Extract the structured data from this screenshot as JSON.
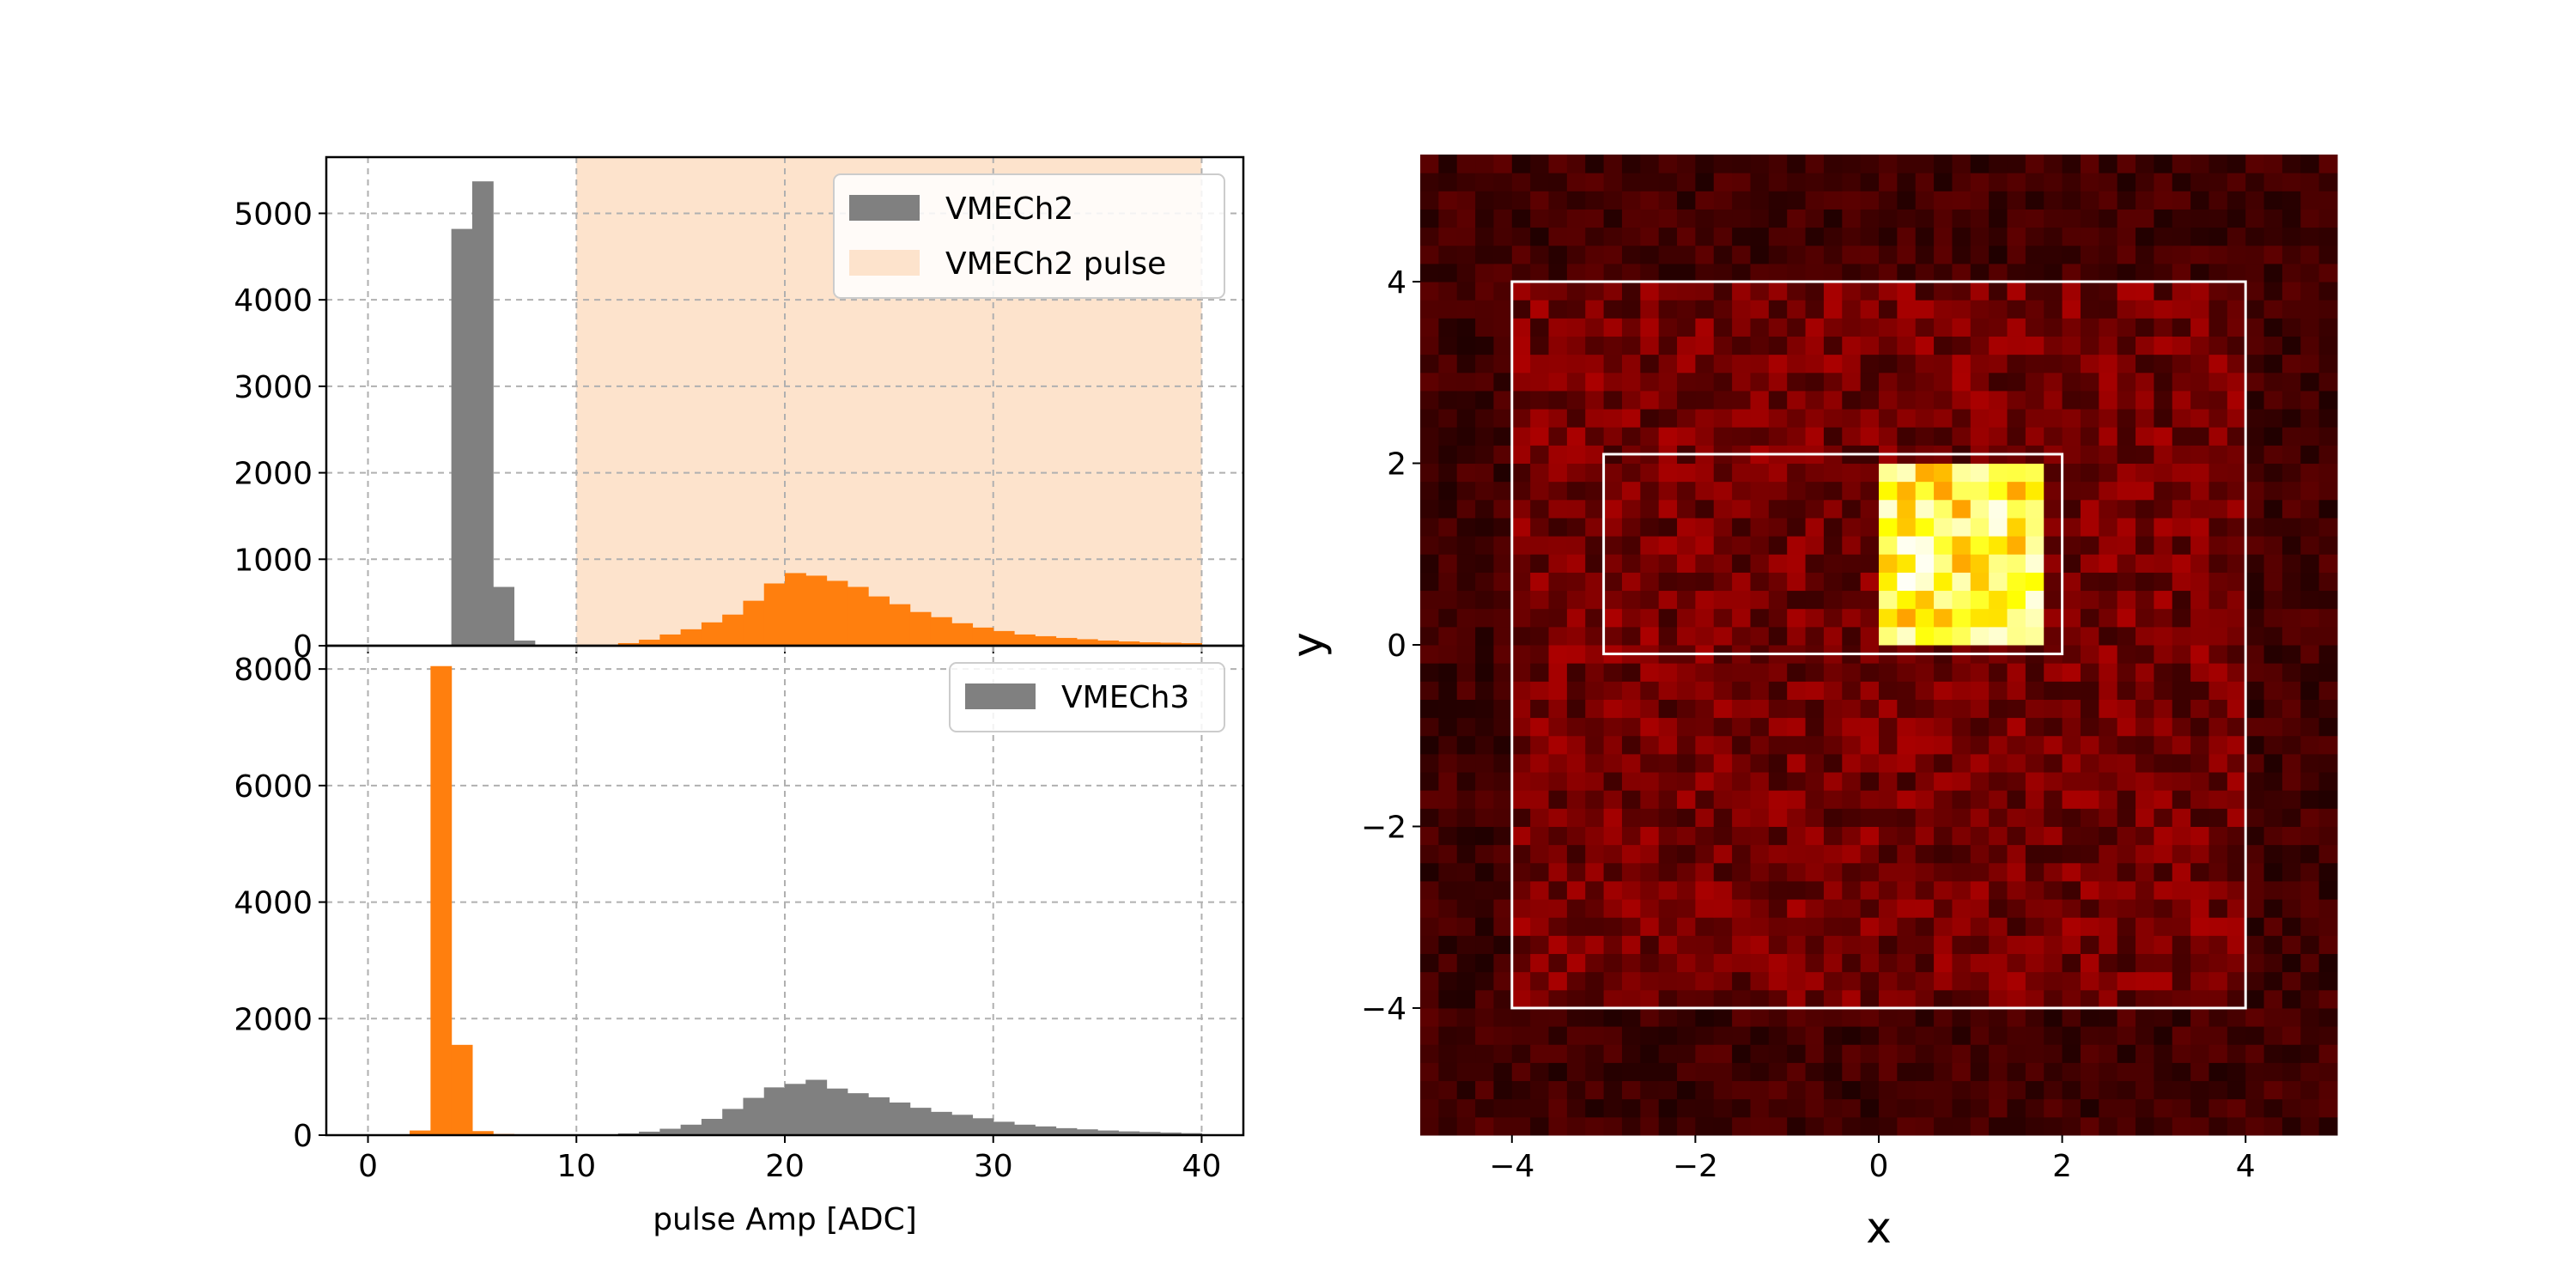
{
  "chart_data": [
    {
      "type": "bar",
      "panel": "top-left histogram",
      "xlabel": "",
      "ylabel": "",
      "xlim": [
        -2,
        42
      ],
      "ylim": [
        0,
        5650
      ],
      "yticks": [
        0,
        1000,
        2000,
        3000,
        4000,
        5000
      ],
      "grid": true,
      "legend": {
        "placement": "top-right",
        "entries": [
          "VMECh2",
          "VMECh2 pulse"
        ]
      },
      "shaded_region": {
        "label": "VMECh2 pulse",
        "x": [
          10,
          40
        ],
        "color": "#fde3cc"
      },
      "bin_width": 1,
      "series": [
        {
          "name": "VMECh2",
          "color": "#808080",
          "bins": [
            [
              4,
              4820
            ],
            [
              5,
              5370
            ],
            [
              6,
              680
            ],
            [
              7,
              60
            ]
          ]
        },
        {
          "color": "#ff7f0e",
          "bins": [
            [
              11,
              10
            ],
            [
              12,
              30
            ],
            [
              13,
              70
            ],
            [
              14,
              130
            ],
            [
              15,
              190
            ],
            [
              16,
              270
            ],
            [
              17,
              360
            ],
            [
              18,
              520
            ],
            [
              19,
              720
            ],
            [
              20,
              840
            ],
            [
              21,
              810
            ],
            [
              22,
              750
            ],
            [
              23,
              680
            ],
            [
              24,
              570
            ],
            [
              25,
              480
            ],
            [
              26,
              390
            ],
            [
              27,
              330
            ],
            [
              28,
              260
            ],
            [
              29,
              210
            ],
            [
              30,
              170
            ],
            [
              31,
              130
            ],
            [
              32,
              110
            ],
            [
              33,
              90
            ],
            [
              34,
              75
            ],
            [
              35,
              60
            ],
            [
              36,
              50
            ],
            [
              37,
              40
            ],
            [
              38,
              35
            ],
            [
              39,
              30
            ]
          ]
        }
      ]
    },
    {
      "type": "bar",
      "panel": "bottom-left histogram",
      "xlabel": "pulse Amp [ADC]",
      "ylabel": "",
      "xlim": [
        -2,
        42
      ],
      "ylim": [
        0,
        8400
      ],
      "xticks": [
        0,
        10,
        20,
        30,
        40
      ],
      "yticks": [
        0,
        2000,
        4000,
        6000,
        8000
      ],
      "grid": true,
      "legend": {
        "placement": "top-right",
        "entries": [
          "VMECh3"
        ]
      },
      "bin_width": 1,
      "series": [
        {
          "name": "VMECh3",
          "color": "#808080",
          "bins": [
            [
              11,
              10
            ],
            [
              12,
              30
            ],
            [
              13,
              60
            ],
            [
              14,
              110
            ],
            [
              15,
              180
            ],
            [
              16,
              280
            ],
            [
              17,
              450
            ],
            [
              18,
              640
            ],
            [
              19,
              820
            ],
            [
              20,
              880
            ],
            [
              21,
              950
            ],
            [
              22,
              800
            ],
            [
              23,
              720
            ],
            [
              24,
              650
            ],
            [
              25,
              560
            ],
            [
              26,
              470
            ],
            [
              27,
              400
            ],
            [
              28,
              350
            ],
            [
              29,
              290
            ],
            [
              30,
              230
            ],
            [
              31,
              180
            ],
            [
              32,
              150
            ],
            [
              33,
              120
            ],
            [
              34,
              100
            ],
            [
              35,
              80
            ],
            [
              36,
              65
            ],
            [
              37,
              55
            ],
            [
              38,
              45
            ],
            [
              39,
              35
            ]
          ]
        },
        {
          "color": "#ff7f0e",
          "bins": [
            [
              2,
              80
            ],
            [
              3,
              8050
            ],
            [
              4,
              1550
            ],
            [
              5,
              70
            ],
            [
              6,
              20
            ],
            [
              7,
              10
            ],
            [
              8,
              5
            ],
            [
              9,
              5
            ]
          ]
        }
      ]
    },
    {
      "type": "heatmap",
      "panel": "right 2D histogram",
      "xlabel": "x",
      "ylabel": "y",
      "xlim": [
        -5,
        5
      ],
      "ylim": [
        -5.4,
        5.4
      ],
      "xticks": [
        -4,
        -2,
        0,
        2,
        4
      ],
      "yticks": [
        -4,
        -2,
        0,
        2,
        4
      ],
      "bins": [
        50,
        54
      ],
      "colormap": "hot",
      "hotspot": {
        "x": [
          0,
          1.8
        ],
        "y": [
          0,
          2
        ]
      },
      "rectangles": [
        {
          "x0": -4,
          "x1": 4,
          "y0": -4,
          "y1": 4,
          "color": "#ffffff"
        },
        {
          "x0": -3,
          "x1": 2,
          "y0": -0.1,
          "y1": 2.1,
          "color": "#ffffff"
        }
      ]
    }
  ]
}
